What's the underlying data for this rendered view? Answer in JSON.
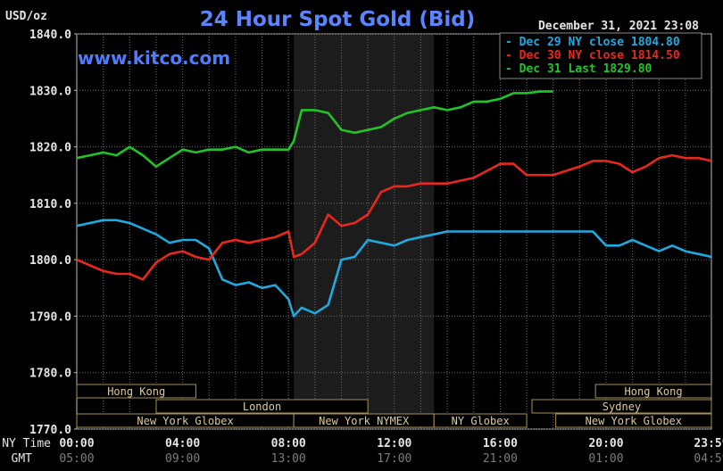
{
  "chart_data": {
    "type": "line",
    "title": "24 Hour Spot Gold (Bid)",
    "ylabel": "USD/oz",
    "watermark": "www.kitco.com",
    "timestamp": "December 31, 2021 23:08",
    "ylim": [
      1770,
      1840
    ],
    "yticks": [
      "1840.0",
      "1830.0",
      "1820.0",
      "1810.0",
      "1800.0",
      "1790.0",
      "1780.0",
      "1770.0"
    ],
    "x_row_labels": {
      "ny": "NY Time",
      "gmt": "GMT"
    },
    "x_ticks_ny": [
      "00:00",
      "04:00",
      "08:00",
      "12:00",
      "16:00",
      "20:00",
      "23:59"
    ],
    "x_ticks_gmt": [
      "05:00",
      "09:00",
      "13:00",
      "17:00",
      "21:00",
      "01:00",
      "04:59"
    ],
    "x_tick_hours": [
      0,
      4,
      8,
      12,
      16,
      20,
      23.98
    ],
    "xlim_hours": [
      0,
      23.98
    ],
    "shaded_range_hours": [
      8.2,
      13.5
    ],
    "sessions": [
      {
        "label": "Hong Kong",
        "start": 0,
        "end": 4.5,
        "row": 0
      },
      {
        "label": "Hong Kong",
        "start": 19.6,
        "end": 23.98,
        "row": 0
      },
      {
        "label": "London",
        "start": 3.0,
        "end": 11.0,
        "row": 1
      },
      {
        "label": "Sydney",
        "start": 17.2,
        "end": 23.98,
        "row": 1
      },
      {
        "label": "New York Globex",
        "start": 0,
        "end": 8.2,
        "row": 2
      },
      {
        "label": "New York NYMEX",
        "start": 8.2,
        "end": 13.5,
        "row": 2
      },
      {
        "label": "NY Globex",
        "start": 13.5,
        "end": 17.0,
        "row": 2
      },
      {
        "label": "New York Globex",
        "start": 18.1,
        "end": 23.98,
        "row": 2
      }
    ],
    "series": [
      {
        "name": "Dec 29 NY close 1804.80",
        "color": "#1fa9e0",
        "x": [
          0,
          0.5,
          1,
          1.5,
          2,
          2.5,
          3,
          3.5,
          4,
          4.5,
          5,
          5.5,
          6,
          6.5,
          7,
          7.5,
          8,
          8.2,
          8.5,
          9,
          9.5,
          10,
          10.5,
          11,
          11.5,
          12,
          12.5,
          13,
          13.5,
          14,
          15,
          16,
          17,
          18,
          19,
          19.5,
          20,
          20.5,
          21,
          21.5,
          22,
          22.5,
          23,
          23.5,
          23.98
        ],
        "values": [
          1806,
          1806.5,
          1807,
          1807,
          1806.5,
          1805.5,
          1804.5,
          1803,
          1803.5,
          1803.5,
          1802,
          1796.5,
          1795.5,
          1796,
          1795,
          1795.5,
          1793,
          1790,
          1791.5,
          1790.5,
          1792,
          1800,
          1800.5,
          1803.5,
          1803,
          1802.5,
          1803.5,
          1804,
          1804.5,
          1805,
          1805,
          1805,
          1805,
          1805,
          1805,
          1805,
          1802.5,
          1802.5,
          1803.5,
          1802.5,
          1801.5,
          1802.5,
          1801.5,
          1801,
          1800.5
        ]
      },
      {
        "name": "Dec 30 NY close 1814.50",
        "color": "#e8281f",
        "x": [
          0,
          0.5,
          1,
          1.5,
          2,
          2.5,
          3,
          3.5,
          4,
          4.5,
          5,
          5.5,
          6,
          6.5,
          7,
          7.5,
          8,
          8.2,
          8.5,
          9,
          9.5,
          10,
          10.5,
          11,
          11.5,
          12,
          12.5,
          13,
          13.5,
          14,
          15,
          16,
          16.5,
          17,
          18,
          19,
          19.5,
          20,
          20.5,
          21,
          21.5,
          22,
          22.5,
          23,
          23.5,
          23.98
        ],
        "values": [
          1800,
          1799,
          1798,
          1797.5,
          1797.5,
          1796.5,
          1799.5,
          1801,
          1801.5,
          1800.5,
          1800,
          1803,
          1803.5,
          1803,
          1803.5,
          1804,
          1805,
          1800.5,
          1801,
          1803,
          1808,
          1806,
          1806.5,
          1808,
          1812,
          1813,
          1813,
          1813.5,
          1813.5,
          1813.5,
          1814.5,
          1817,
          1817,
          1815,
          1815,
          1816.5,
          1817.5,
          1817.5,
          1817,
          1815.5,
          1816.5,
          1818,
          1818.5,
          1818,
          1818,
          1817.5
        ]
      },
      {
        "name": "Dec 31 Last 1829.80",
        "color": "#21c428",
        "x": [
          0,
          0.5,
          1,
          1.5,
          2,
          2.5,
          3,
          3.5,
          4,
          4.5,
          5,
          5.5,
          6,
          6.5,
          7,
          7.5,
          8,
          8.2,
          8.5,
          9,
          9.5,
          10,
          10.5,
          11,
          11.5,
          12,
          12.5,
          13,
          13.5,
          14,
          14.5,
          15,
          15.5,
          16,
          16.5,
          17,
          17.5,
          18
        ],
        "values": [
          1818,
          1818.5,
          1819,
          1818.5,
          1820,
          1818.5,
          1816.5,
          1818,
          1819.5,
          1819,
          1819.5,
          1819.5,
          1820,
          1819,
          1819.5,
          1819.5,
          1819.5,
          1821,
          1826.5,
          1826.5,
          1826,
          1823,
          1822.5,
          1823,
          1823.5,
          1825,
          1826,
          1826.5,
          1827,
          1826.5,
          1827,
          1828,
          1828,
          1828.5,
          1829.5,
          1829.5,
          1829.8,
          1829.8
        ]
      }
    ]
  }
}
